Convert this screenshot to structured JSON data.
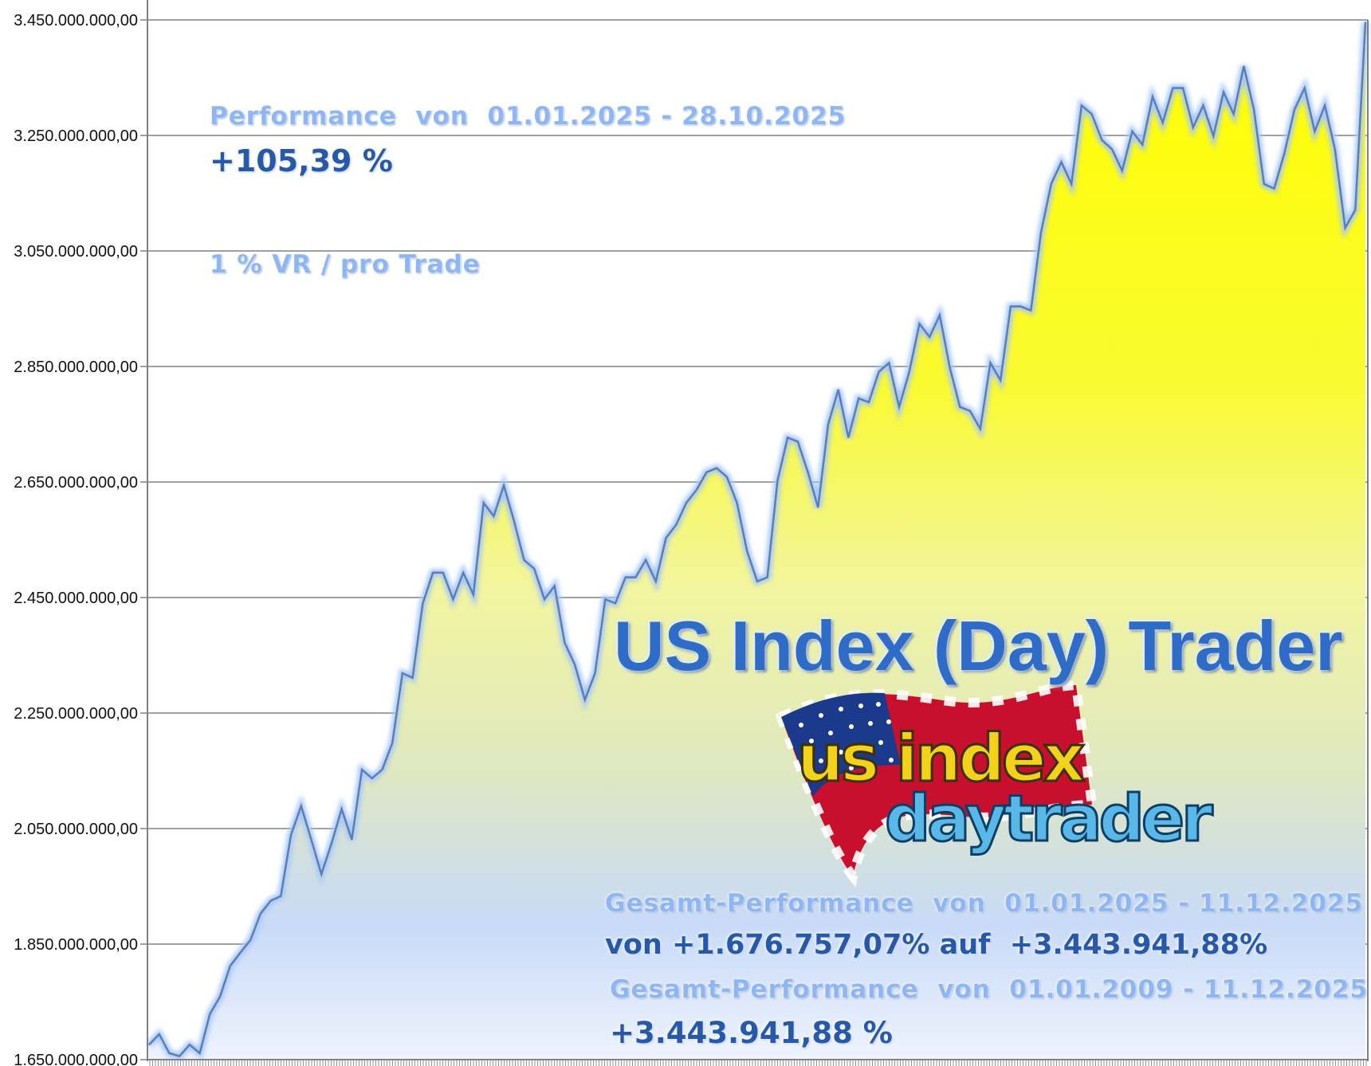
{
  "chart_data": {
    "type": "area",
    "title": "",
    "xlabel": "",
    "ylabel": "",
    "ylim": [
      1650000000,
      3450000000
    ],
    "y_ticks": [
      "1.650.000.000,00",
      "1.850.000.000,00",
      "2.050.000.000,00",
      "2.250.000.000,00",
      "2.450.000.000,00",
      "2.650.000.000,00",
      "2.850.000.000,00",
      "3.050.000.000,00",
      "3.250.000.000,00",
      "3.450.000.000,00"
    ],
    "y_tick_values": [
      1650000000,
      1850000000,
      2050000000,
      2250000000,
      2450000000,
      2650000000,
      2850000000,
      3050000000,
      3250000000,
      3450000000
    ],
    "grid": "horizontal",
    "colors": {
      "fill_top": "#ffff00",
      "fill_mid": "#dfe8c0",
      "fill_low": "#c8daf8",
      "fill_bottom": "#eef3fc",
      "line": "#5a7fb8",
      "grid": "#808080"
    },
    "values": [
      1676000000,
      1694000000,
      1661000000,
      1656000000,
      1676000000,
      1661000000,
      1729000000,
      1759000000,
      1812000000,
      1835000000,
      1857000000,
      1903000000,
      1925000000,
      1933000000,
      2039000000,
      2089000000,
      2031000000,
      1971000000,
      2024000000,
      2084000000,
      2031000000,
      2152000000,
      2137000000,
      2152000000,
      2198000000,
      2319000000,
      2311000000,
      2440000000,
      2493000000,
      2493000000,
      2447000000,
      2493000000,
      2455000000,
      2614000000,
      2591000000,
      2644000000,
      2583000000,
      2515000000,
      2500000000,
      2447000000,
      2470000000,
      2372000000,
      2334000000,
      2273000000,
      2319000000,
      2447000000,
      2440000000,
      2485000000,
      2485000000,
      2515000000,
      2478000000,
      2553000000,
      2576000000,
      2614000000,
      2636000000,
      2667000000,
      2674000000,
      2659000000,
      2614000000,
      2530000000,
      2478000000,
      2485000000,
      2652000000,
      2727000000,
      2720000000,
      2667000000,
      2606000000,
      2750000000,
      2810000000,
      2727000000,
      2795000000,
      2788000000,
      2841000000,
      2856000000,
      2780000000,
      2841000000,
      2924000000,
      2901000000,
      2939000000,
      2848000000,
      2780000000,
      2773000000,
      2742000000,
      2856000000,
      2826000000,
      2954000000,
      2954000000,
      2947000000,
      3083000000,
      3166000000,
      3204000000,
      3166000000,
      3302000000,
      3287000000,
      3242000000,
      3226000000,
      3189000000,
      3257000000,
      3234000000,
      3317000000,
      3272000000,
      3332000000,
      3332000000,
      3264000000,
      3302000000,
      3249000000,
      3325000000,
      3287000000,
      3370000000,
      3295000000,
      3166000000,
      3158000000,
      3219000000,
      3295000000,
      3332000000,
      3257000000,
      3302000000,
      3226000000,
      3090000000,
      3121000000,
      3446000000
    ]
  },
  "overlay": {
    "perf_period": "Performance  von  01.01.2025 - 28.10.2025",
    "perf_value": "+105,39 %",
    "risk": "1 % VR / pro Trade",
    "headline": "US Index (Day) Trader",
    "logo": {
      "line1": "us index",
      "line2": "daytrader"
    },
    "total1_period": "Gesamt-Performance  von  01.01.2025 - 11.12.2025",
    "total1_value": "von +1.676.757,07% auf  +3.443.941,88%",
    "total2_period": "Gesamt-Performance  von  01.01.2009 - 11.12.2025",
    "total2_value": "+3.443.941,88 %"
  }
}
